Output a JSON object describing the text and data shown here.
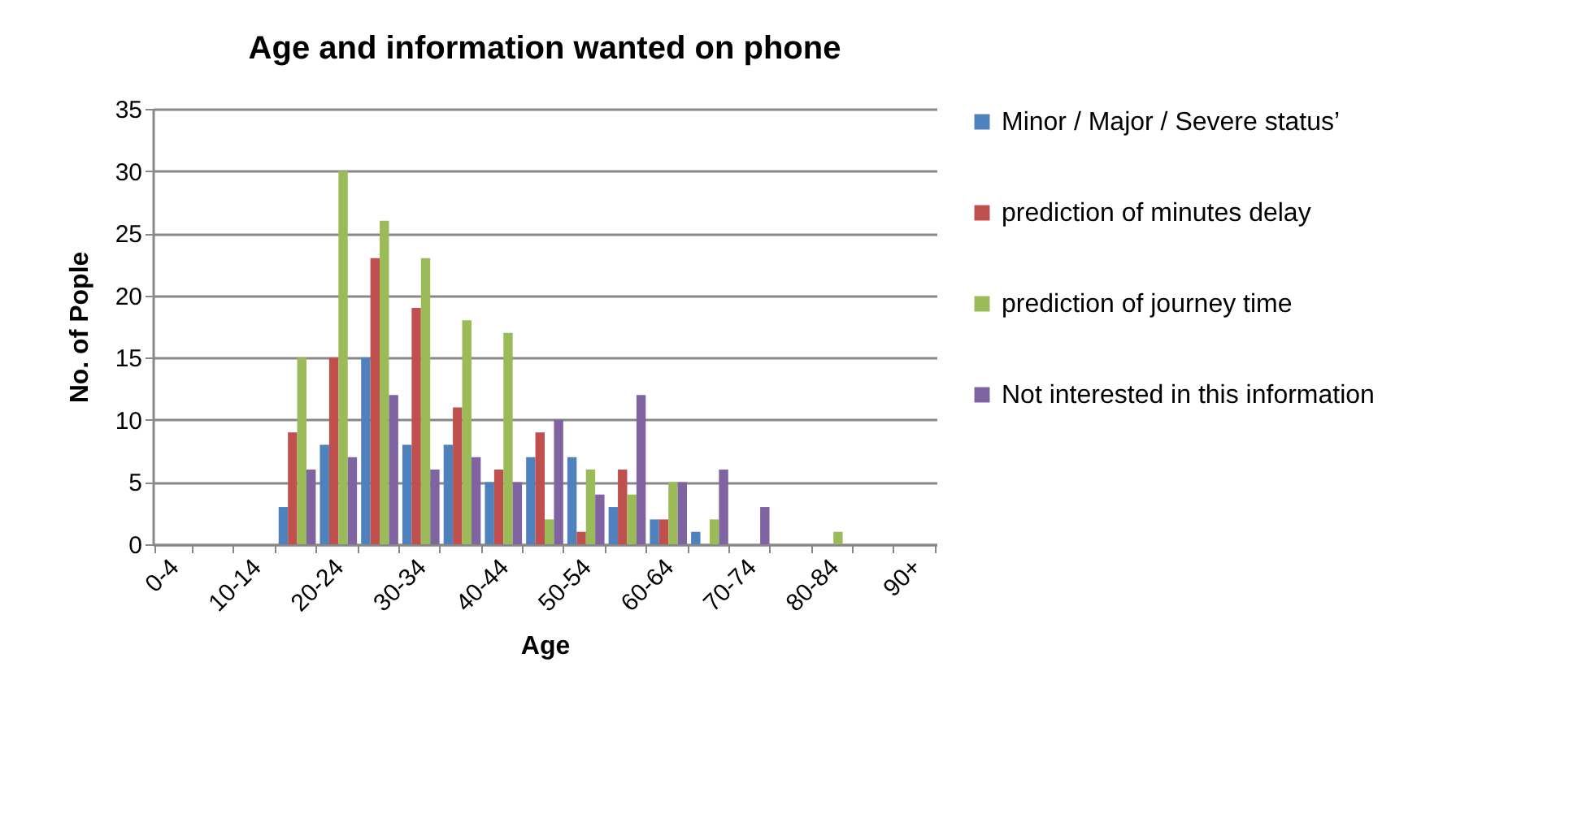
{
  "chart_data": {
    "type": "bar",
    "title": "Age and information wanted on phone",
    "xlabel": "Age",
    "ylabel": "No. of Pople",
    "categories": [
      "0-4",
      null,
      "10-14",
      null,
      "20-24",
      null,
      "30-34",
      null,
      "40-44",
      null,
      "50-54",
      null,
      "60-64",
      null,
      "70-74",
      null,
      "80-84",
      null,
      "90+"
    ],
    "series": [
      {
        "name": "Minor / Major / Severe status’",
        "color": "#4f81bd",
        "values": [
          null,
          null,
          null,
          3,
          8,
          15,
          8,
          8,
          5,
          7,
          7,
          3,
          2,
          1,
          null,
          null,
          null,
          null,
          null
        ]
      },
      {
        "name": "prediction of minutes delay",
        "color": "#c0504d",
        "values": [
          null,
          null,
          null,
          9,
          15,
          23,
          19,
          11,
          6,
          9,
          1,
          6,
          2,
          null,
          null,
          null,
          null,
          null,
          null
        ]
      },
      {
        "name": "prediction of journey time",
        "color": "#9bbb59",
        "values": [
          null,
          null,
          null,
          15,
          30,
          26,
          23,
          18,
          17,
          2,
          6,
          4,
          5,
          2,
          null,
          null,
          1,
          null,
          null
        ]
      },
      {
        "name": "Not interested in this information",
        "color": "#8064a2",
        "values": [
          null,
          null,
          null,
          6,
          7,
          12,
          6,
          7,
          5,
          10,
          4,
          12,
          5,
          6,
          3,
          null,
          null,
          null,
          null
        ]
      }
    ],
    "ylim": [
      0,
      35
    ],
    "yticks": [
      0,
      5,
      10,
      15,
      20,
      25,
      30,
      35
    ],
    "grid": "y",
    "legend": "right"
  }
}
